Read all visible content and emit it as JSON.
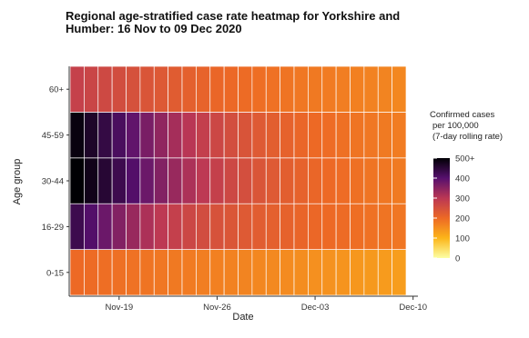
{
  "chart_data": {
    "type": "heatmap",
    "title_lines": [
      "Regional age-stratified case rate heatmap for Yorkshire and",
      "Humber: 16 Nov to 09 Dec 2020"
    ],
    "xlabel": "Date",
    "ylabel": "Age group",
    "x_start_day": "2020-11-16",
    "x_end_day": "2020-12-09",
    "x_tick_labels": [
      "Nov-19",
      "Nov-26",
      "Dec-03",
      "Dec-10"
    ],
    "y_categories": [
      "0-15",
      "16-29",
      "30-44",
      "45-59",
      "60+"
    ],
    "legend_title": [
      "Confirmed cases",
      "per 100,000",
      "(7-day rolling rate)"
    ],
    "legend_ticks": [
      "500+",
      "400",
      "300",
      "200",
      "100",
      "0"
    ],
    "legend_range": [
      0,
      500
    ],
    "grid": false,
    "legend_position": "right",
    "values": {
      "0-15": [
        200,
        197,
        194,
        191,
        188,
        185,
        182,
        179,
        176,
        173,
        170,
        167,
        164,
        161,
        158,
        155,
        152,
        149,
        146,
        143,
        140,
        137,
        134,
        131
      ],
      "16-29": [
        430,
        405,
        380,
        357,
        335,
        315,
        297,
        282,
        269,
        257,
        247,
        238,
        231,
        225,
        219,
        214,
        209,
        205,
        201,
        197,
        193,
        189,
        186,
        183
      ],
      "30-44": [
        500,
        480,
        455,
        430,
        405,
        380,
        357,
        335,
        315,
        297,
        281,
        266,
        253,
        241,
        231,
        222,
        214,
        207,
        201,
        196,
        191,
        186,
        182,
        178
      ],
      "45-59": [
        490,
        465,
        440,
        415,
        390,
        366,
        343,
        322,
        302,
        285,
        269,
        255,
        242,
        231,
        222,
        214,
        207,
        201,
        196,
        191,
        186,
        182,
        178,
        175
      ],
      "60+": [
        280,
        272,
        264,
        256,
        248,
        240,
        233,
        226,
        219,
        213,
        207,
        202,
        197,
        193,
        189,
        185,
        182,
        179,
        176,
        173,
        170,
        167,
        164,
        161
      ]
    }
  }
}
